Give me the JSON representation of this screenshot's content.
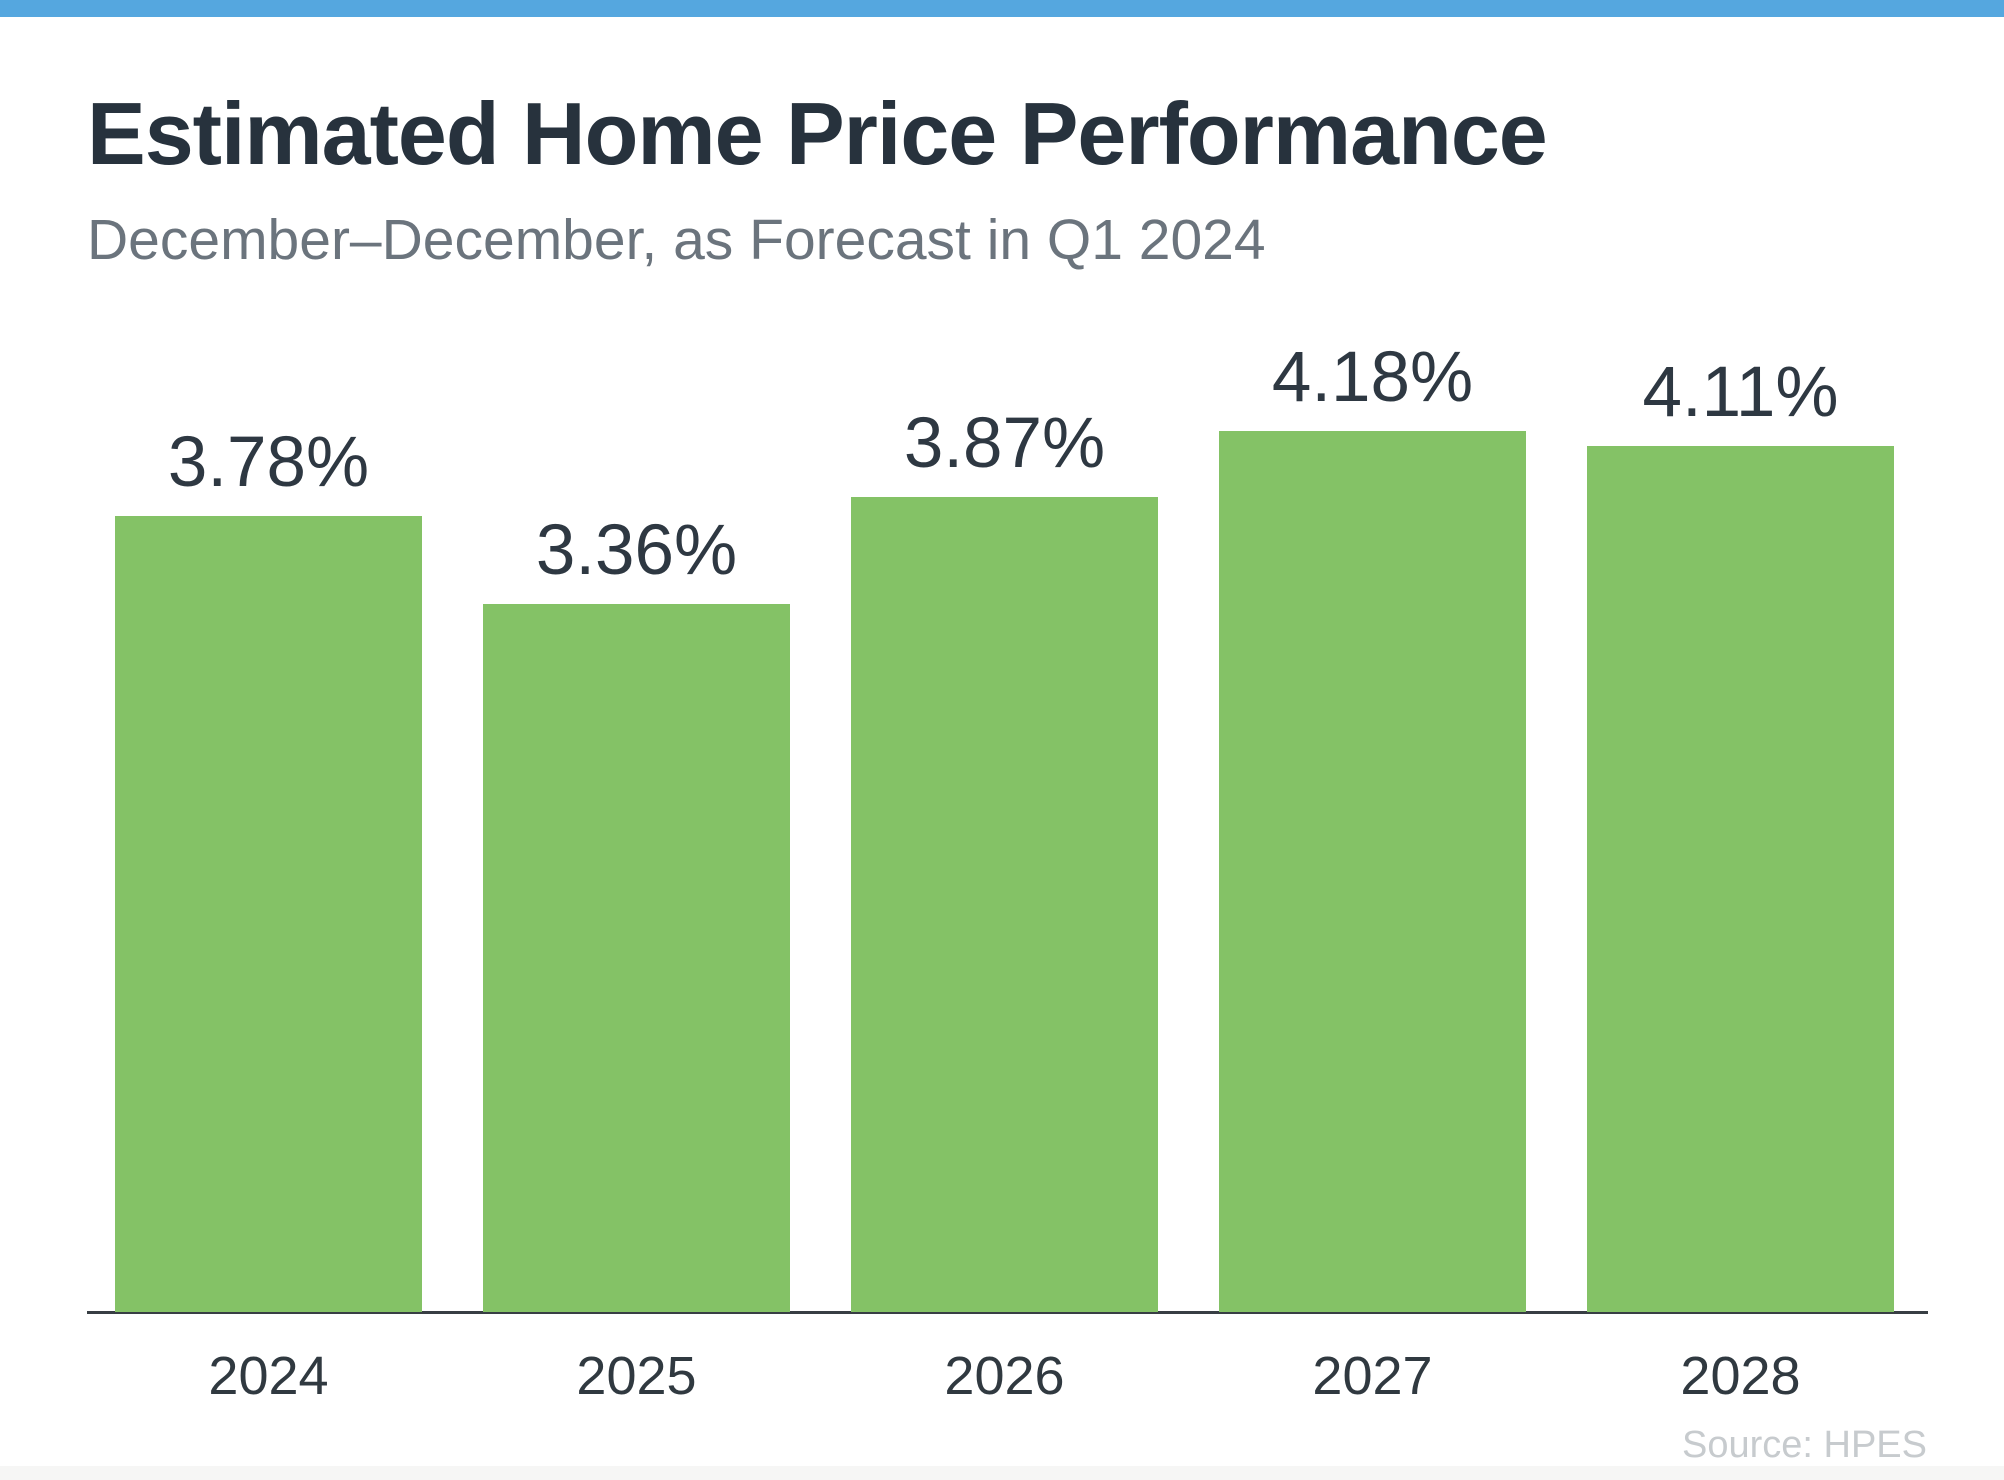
{
  "header": {
    "accent_bar_color": "#55A7DF"
  },
  "title": "Estimated Home Price Performance",
  "subtitle": "December–December, as Forecast in Q1 2024",
  "source": "Source: HPES",
  "colors": {
    "bar_green": "#84C266",
    "title_text": "#27323D",
    "subtitle_text": "#6B747D",
    "axis_line": "#383E44",
    "source_text": "#C7CBCE"
  },
  "chart_data": {
    "type": "bar",
    "title": "Estimated Home Price Performance",
    "subtitle": "December–December, as Forecast in Q1 2024",
    "categories": [
      "2024",
      "2025",
      "2026",
      "2027",
      "2028"
    ],
    "values": [
      3.78,
      3.36,
      3.87,
      4.18,
      4.11
    ],
    "value_labels": [
      "3.78%",
      "3.36%",
      "3.87%",
      "4.18%",
      "4.11%"
    ],
    "xlabel": "",
    "ylabel": "",
    "ylim": [
      0,
      4.7
    ],
    "grid": false,
    "legend": false,
    "y_axis_visible": false,
    "value_label_position": "above-bars",
    "bar_color": "#84C266",
    "source": "Source: HPES"
  }
}
